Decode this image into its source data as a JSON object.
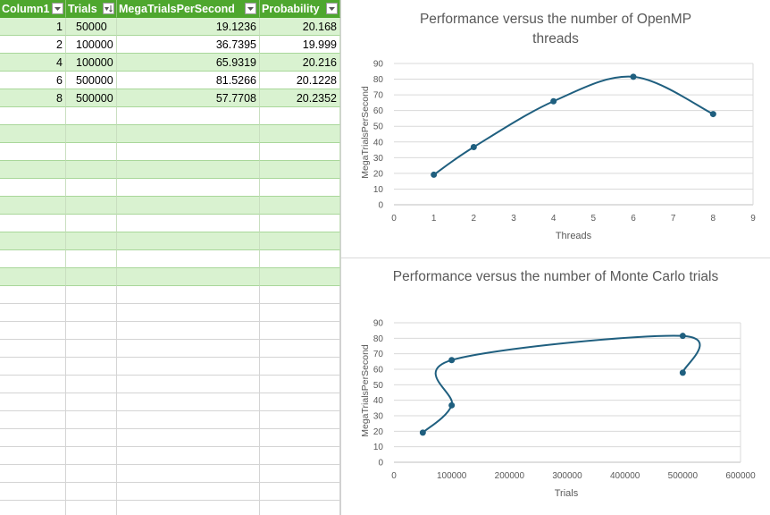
{
  "table": {
    "headers": [
      "Column1",
      "Trials",
      "MegaTrialsPerSecond",
      "Probability"
    ],
    "rows": [
      {
        "column1": "1",
        "trials": "50000",
        "mtps": "19.1236",
        "prob": "20.168"
      },
      {
        "column1": "2",
        "trials": "100000",
        "mtps": "36.7395",
        "prob": "19.999"
      },
      {
        "column1": "4",
        "trials": "100000",
        "mtps": "65.9319",
        "prob": "20.216"
      },
      {
        "column1": "6",
        "trials": "500000",
        "mtps": "81.5266",
        "prob": "20.1228"
      },
      {
        "column1": "8",
        "trials": "500000",
        "mtps": "57.7708",
        "prob": "20.2352"
      }
    ],
    "colors": {
      "header": "#4ea72e",
      "band": "#d9f2d0"
    }
  },
  "chart_data": [
    {
      "type": "line",
      "title": "Performance versus the number of OpenMP threads",
      "xlabel": "Threads",
      "ylabel": "MegaTrialsPerSecond",
      "x": [
        1,
        2,
        4,
        6,
        8
      ],
      "series": [
        {
          "values": [
            19.1236,
            36.7395,
            65.9319,
            81.5266,
            57.7708
          ]
        }
      ],
      "xlim": [
        0,
        9
      ],
      "ylim": [
        0,
        90
      ],
      "xticks": [
        "0",
        "1",
        "2",
        "3",
        "4",
        "5",
        "6",
        "7",
        "8",
        "9"
      ],
      "yticks": [
        "0",
        "10",
        "20",
        "30",
        "40",
        "50",
        "60",
        "70",
        "80",
        "90"
      ],
      "smooth": true,
      "grid": true,
      "color": "#1f5f7f"
    },
    {
      "type": "scatter",
      "title": "Performance versus the number of Monte Carlo trials",
      "xlabel": "Trials",
      "ylabel": "MegaTrialsPerSecond",
      "x": [
        50000,
        100000,
        100000,
        500000,
        500000
      ],
      "series": [
        {
          "values": [
            19.1236,
            36.7395,
            65.9319,
            81.5266,
            57.7708
          ]
        }
      ],
      "xlim": [
        0,
        600000
      ],
      "ylim": [
        0,
        90
      ],
      "xticks": [
        "0",
        "100000",
        "200000",
        "300000",
        "400000",
        "500000",
        "600000"
      ],
      "yticks": [
        "0",
        "10",
        "20",
        "30",
        "40",
        "50",
        "60",
        "70",
        "80",
        "90"
      ],
      "smooth": true,
      "grid": true,
      "color": "#1f5f7f"
    }
  ]
}
